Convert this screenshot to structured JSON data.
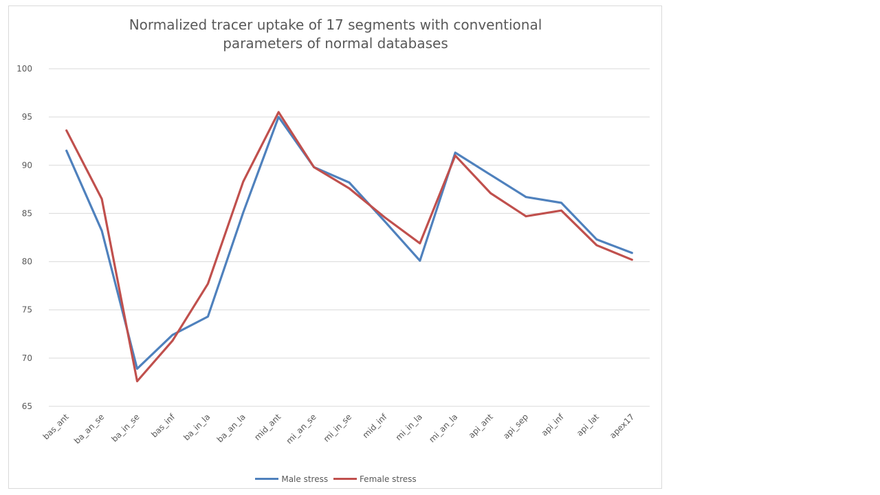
{
  "chart_data": {
    "type": "line",
    "title": "Normalized tracer uptake of 17 segments with conventional parameters of normal databases",
    "categories": [
      "bas_ant",
      "ba_an_se",
      "ba_in_se",
      "bas_inf",
      "ba_in_la",
      "ba_an_la",
      "mid_ant",
      "mi_an_se",
      "mi_in_se",
      "mid_inf",
      "mi_in_la",
      "mi_an_la",
      "api_ant",
      "api_sep",
      "api_inf",
      "api_lat",
      "apex17"
    ],
    "ylim": [
      65,
      100
    ],
    "yticks": [
      "65",
      "70",
      "75",
      "80",
      "85",
      "90",
      "95",
      "100"
    ],
    "grid": true,
    "legend_position": "bottom",
    "series": [
      {
        "name": "Male stress",
        "color": "#4f81bd",
        "values": [
          91.5,
          83.2,
          68.9,
          72.4,
          74.3,
          85.1,
          95.0,
          89.8,
          88.2,
          84.2,
          80.1,
          91.3,
          89.0,
          86.7,
          86.1,
          82.3,
          80.9
        ]
      },
      {
        "name": "Female stress",
        "color": "#c0504d",
        "values": [
          93.6,
          86.5,
          67.6,
          71.8,
          77.7,
          88.3,
          95.5,
          89.8,
          87.6,
          84.6,
          81.9,
          91.0,
          87.1,
          84.7,
          85.3,
          81.7,
          80.2
        ]
      }
    ]
  }
}
